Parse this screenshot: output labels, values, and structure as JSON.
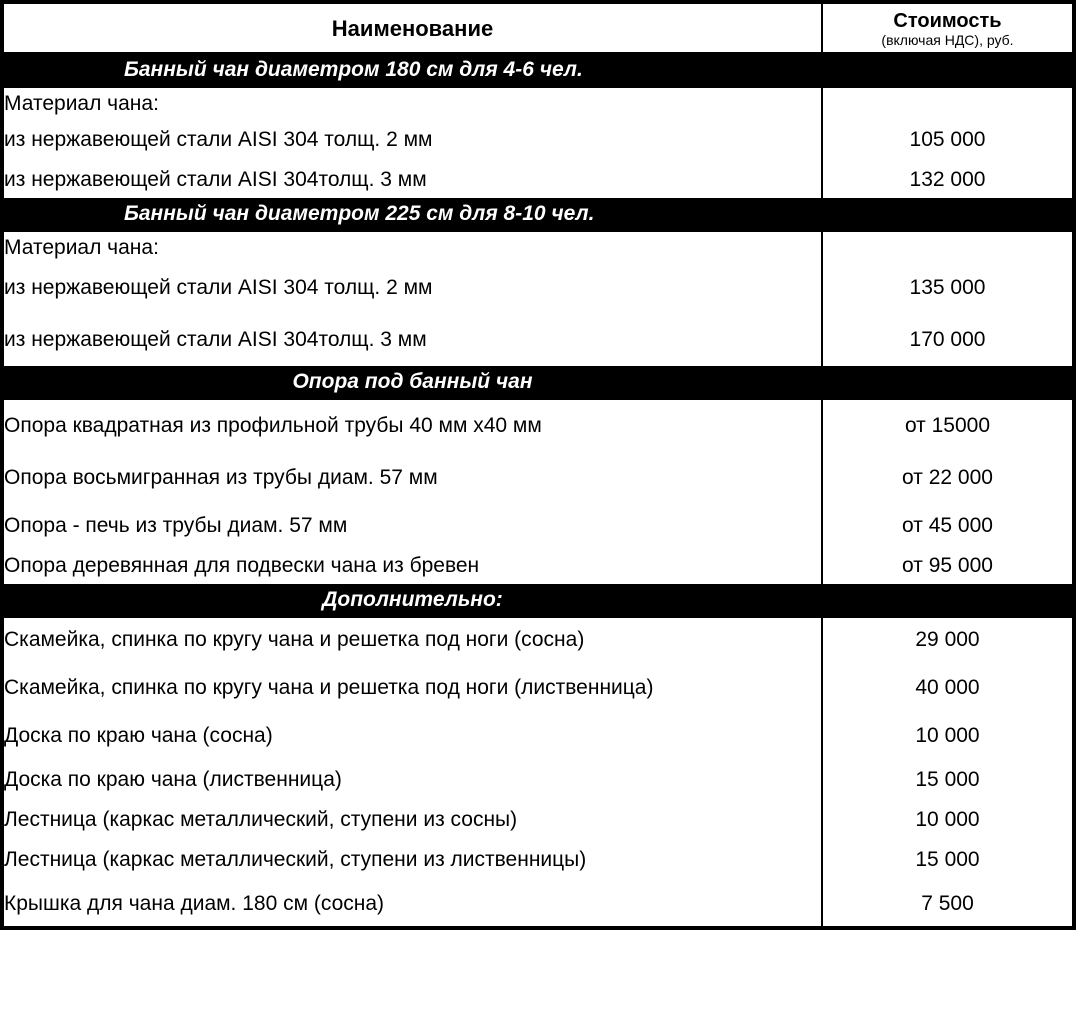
{
  "header": {
    "name": "Наименование",
    "price_main": "Стоимость",
    "price_sub": "(включая НДС), руб."
  },
  "sections": [
    {
      "title": "Банный чан диаметром 180 см для 4-6 чел.",
      "style": "indent",
      "material_label": "Материал чана:",
      "rows": [
        {
          "name": "из нержавеющей стали  AISI 304 толщ. 2 мм",
          "price": "105 000",
          "indent": true,
          "size": "med"
        },
        {
          "name": "из нержавеющей стали AISI 304толщ. 3 мм",
          "price": "132 000",
          "indent": true,
          "size": "sm"
        }
      ]
    },
    {
      "title": "Банный чан диаметром 225 см для 8-10 чел.",
      "style": "indent",
      "material_label": "Материал чана:",
      "rows": [
        {
          "name": "из нержавеющей стали  AISI 304 толщ. 2 мм",
          "price": "135 000",
          "indent": true,
          "size": "tall"
        },
        {
          "name": "из нержавеющей стали AISI 304толщ. 3 мм",
          "price": "170 000",
          "indent": true,
          "size": "tall"
        }
      ]
    },
    {
      "title": "Опора под банный чан",
      "style": "center",
      "rows": [
        {
          "name": "Опора квадратная  из профильной трубы 40 мм х40 мм",
          "price": "от 15000",
          "indent": false,
          "size": "tall"
        },
        {
          "name": "Опора восьмигранная из трубы диам. 57 мм",
          "price": "от 22 000",
          "indent": false,
          "size": "tall"
        },
        {
          "name": "Опора - печь из трубы диам. 57 мм",
          "price": "от 45 000",
          "indent": false,
          "size": "med"
        },
        {
          "name": "Опора деревянная для подвески чана из бревен",
          "price": "от 95 000",
          "indent": false,
          "size": "sm"
        }
      ]
    },
    {
      "title": "Дополнительно:",
      "style": "center",
      "rows": [
        {
          "name": "Скамейка, спинка по кругу чана и решетка под ноги (сосна)",
          "price": "29 000",
          "indent": false,
          "size": "med"
        },
        {
          "name": "Скамейка, спинка по кругу чана и решетка под ноги (лиственница)",
          "price": "40 000",
          "indent": false,
          "size": "tall"
        },
        {
          "name": "Доска по краю чана (сосна)",
          "price": "10 000",
          "indent": false,
          "size": "med"
        },
        {
          "name": "Доска по краю чана (лиственница)",
          "price": "15 000",
          "indent": false,
          "size": "med"
        },
        {
          "name": "Лестница (каркас металлический, ступени из сосны)",
          "price": "10 000",
          "indent": false,
          "size": "sm"
        },
        {
          "name": "Лестница (каркас металлический, ступени из лиственницы)",
          "price": "15 000",
          "indent": false,
          "size": "med"
        },
        {
          "name": "Крышка для чана диам. 180 см (сосна)",
          "price": "7 500",
          "indent": false,
          "size": "med"
        }
      ]
    }
  ]
}
